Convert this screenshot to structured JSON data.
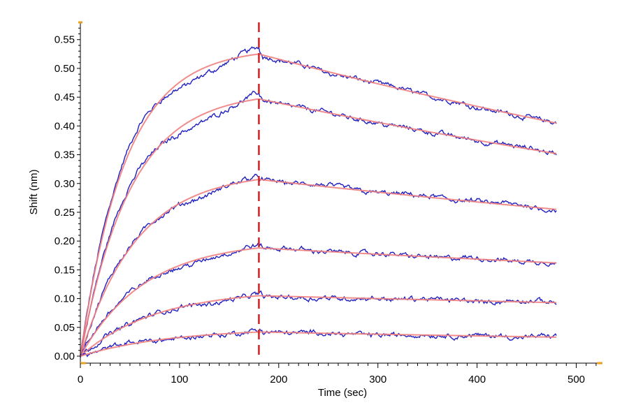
{
  "chart_data": {
    "type": "line",
    "title": "",
    "xlabel": "Time (sec)",
    "ylabel": "Shift (nm)",
    "xlim": [
      0,
      525
    ],
    "ylim": [
      0,
      0.58
    ],
    "x_ticks": [
      "0",
      "100",
      "200",
      "300",
      "400",
      "500"
    ],
    "y_ticks": [
      "0.00",
      "0.05",
      "0.10",
      "0.15",
      "0.20",
      "0.25",
      "0.30",
      "0.35",
      "0.40",
      "0.45",
      "0.50",
      "0.55"
    ],
    "grid": false,
    "legend": "none",
    "association_end_time": 180,
    "end_time": 480,
    "colors": {
      "measured": "#2020c0",
      "fit": "#f08080",
      "marker": "#d42020",
      "axis_accent": "#e8a020"
    },
    "series": [
      {
        "peak": 0.525,
        "end": 0.405
      },
      {
        "peak": 0.447,
        "end": 0.352
      },
      {
        "peak": 0.307,
        "end": 0.255
      },
      {
        "peak": 0.188,
        "end": 0.162
      },
      {
        "peak": 0.105,
        "end": 0.093
      },
      {
        "peak": 0.042,
        "end": 0.033
      }
    ]
  }
}
